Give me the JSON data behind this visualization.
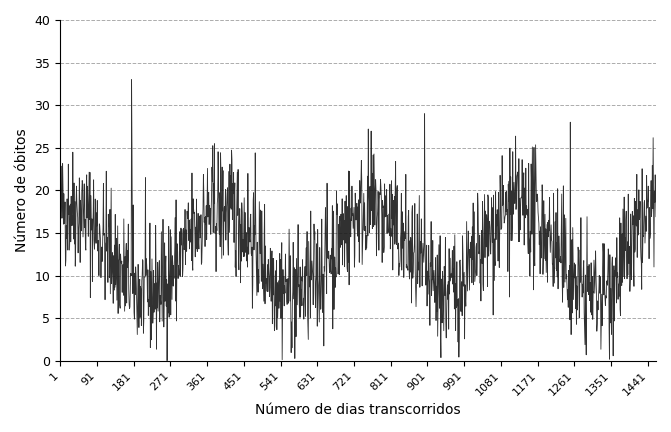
{
  "title": "",
  "xlabel": "Número de dias transcorridos",
  "ylabel": "Número de óbitos",
  "xlim": [
    1,
    1461
  ],
  "ylim": [
    0,
    40
  ],
  "yticks": [
    0,
    5,
    10,
    15,
    20,
    25,
    30,
    35,
    40
  ],
  "xticks": [
    1,
    91,
    181,
    271,
    361,
    451,
    541,
    631,
    721,
    811,
    901,
    991,
    1081,
    1171,
    1261,
    1351,
    1441
  ],
  "xtick_labels": [
    "1",
    "91",
    "181",
    "271",
    "361",
    "451",
    "541",
    "631",
    "721",
    "811",
    "901",
    "991",
    "1081",
    "1171",
    "1261",
    "1351",
    "1441"
  ],
  "line_color": "#1a1a1a",
  "grid_color": "#888888",
  "background_color": "#ffffff",
  "seed": 42,
  "n_days": 1461,
  "base_mean": 13,
  "seasonal_amp": 5,
  "noise_std": 3.5,
  "spikes": [
    {
      "day": 175,
      "value": 33
    },
    {
      "day": 176,
      "value": 25
    },
    {
      "day": 893,
      "value": 29
    },
    {
      "day": 1250,
      "value": 28
    }
  ]
}
